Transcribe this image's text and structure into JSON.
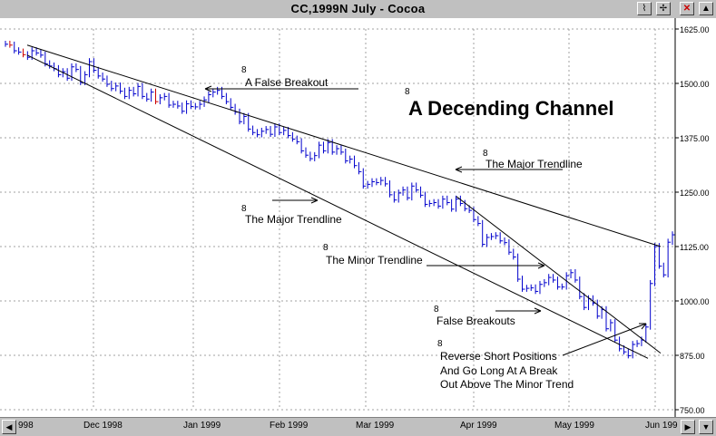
{
  "window": {
    "title": "CC,1999N  July - Cocoa",
    "buttons": [
      "chart-icon",
      "tool-icon",
      "close-icon",
      "scroll-up-icon"
    ]
  },
  "chart_data": {
    "type": "ohlc",
    "title": "CC,1999N  July - Cocoa",
    "ylim": [
      750,
      1625
    ],
    "y_ticks": [
      "1625.00",
      "1500.00",
      "1375.00",
      "1250.00",
      "1125.00",
      "1000.00",
      "875.00",
      "750.00"
    ],
    "x_ticks": [
      "998",
      "Dec 1998",
      "Jan 1999",
      "Feb 1999",
      "Mar 1999",
      "Apr 1999",
      "May 1999",
      "Jun 199"
    ],
    "grid": true,
    "bar_color": "#0000cc",
    "line_color": "#000000",
    "closes": [
      1590,
      1588,
      1575,
      1572,
      1566,
      1560,
      1575,
      1570,
      1565,
      1545,
      1540,
      1534,
      1520,
      1527,
      1512,
      1538,
      1532,
      1502,
      1520,
      1550,
      1530,
      1517,
      1510,
      1498,
      1488,
      1494,
      1482,
      1470,
      1484,
      1476,
      1493,
      1470,
      1464,
      1480,
      1458,
      1467,
      1470,
      1450,
      1452,
      1448,
      1436,
      1453,
      1447,
      1446,
      1452,
      1462,
      1474,
      1480,
      1484,
      1470,
      1458,
      1445,
      1434,
      1412,
      1424,
      1395,
      1387,
      1382,
      1390,
      1394,
      1383,
      1400,
      1387,
      1392,
      1380,
      1372,
      1366,
      1345,
      1335,
      1327,
      1334,
      1358,
      1345,
      1364,
      1342,
      1350,
      1342,
      1322,
      1326,
      1311,
      1297,
      1264,
      1268,
      1274,
      1272,
      1277,
      1269,
      1244,
      1232,
      1248,
      1255,
      1237,
      1264,
      1255,
      1243,
      1222,
      1224,
      1226,
      1218,
      1234,
      1226,
      1211,
      1234,
      1224,
      1212,
      1208,
      1187,
      1178,
      1130,
      1146,
      1148,
      1150,
      1138,
      1134,
      1112,
      1101,
      1050,
      1027,
      1029,
      1030,
      1022,
      1038,
      1042,
      1054,
      1048,
      1032,
      1032,
      1058,
      1065,
      1048,
      1010,
      985,
      1005,
      995,
      965,
      980,
      936,
      950,
      910,
      890,
      883,
      874,
      900,
      902,
      910,
      940,
      1040,
      1125,
      1080,
      1060,
      1135,
      1152
    ],
    "annotations": [
      {
        "text": "A False Breakout"
      },
      {
        "text": "A Decending Channel"
      },
      {
        "text": "The Major Trendline"
      },
      {
        "text": "The Major Trendline"
      },
      {
        "text": "The Minor Trendline"
      },
      {
        "text": "False Breakouts"
      },
      {
        "text": "Reverse Short Positions"
      },
      {
        "text": "And Go Long At A Break"
      },
      {
        "text": "Out Above The Minor Trend"
      }
    ],
    "note_symbol": "8"
  }
}
